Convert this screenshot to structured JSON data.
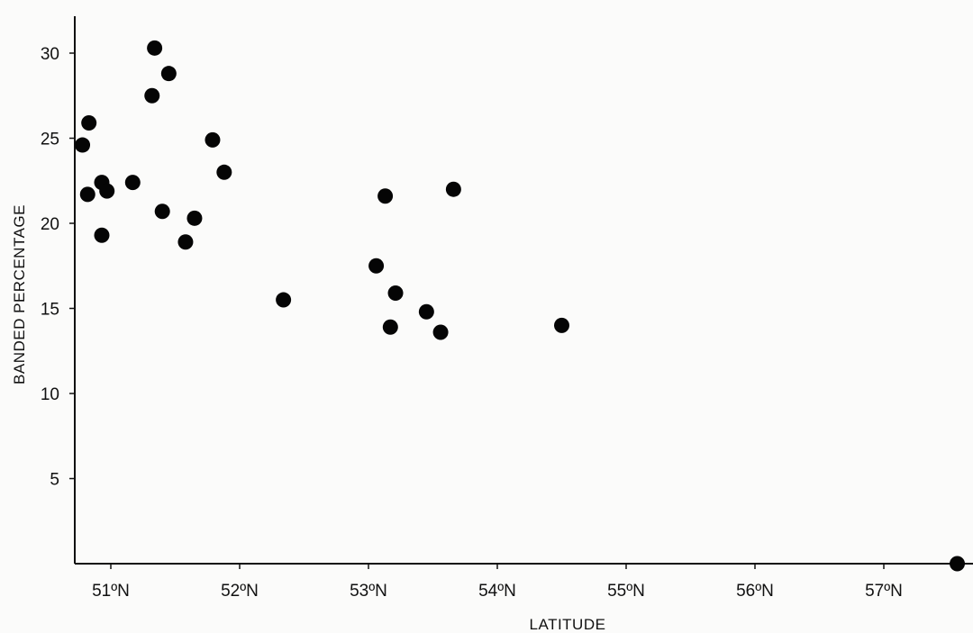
{
  "chart_data": {
    "type": "scatter",
    "title": "",
    "xlabel": "LATITUDE",
    "ylabel": "BANDED PERCENTAGE",
    "xlim": [
      50.7,
      57.7
    ],
    "ylim": [
      0,
      32
    ],
    "x_ticks": [
      {
        "value": 51,
        "label": "51ºN"
      },
      {
        "value": 52,
        "label": "52ºN"
      },
      {
        "value": 53,
        "label": "53ºN"
      },
      {
        "value": 54,
        "label": "54ºN"
      },
      {
        "value": 55,
        "label": "55ºN"
      },
      {
        "value": 56,
        "label": "56ºN"
      },
      {
        "value": 57,
        "label": "57ºN"
      }
    ],
    "y_ticks": [
      {
        "value": 5,
        "label": "5"
      },
      {
        "value": 10,
        "label": "10"
      },
      {
        "value": 15,
        "label": "15"
      },
      {
        "value": 20,
        "label": "20"
      },
      {
        "value": 25,
        "label": "25"
      },
      {
        "value": 30,
        "label": "30"
      }
    ],
    "grid": false,
    "points": [
      {
        "x": 50.78,
        "y": 24.6
      },
      {
        "x": 50.83,
        "y": 25.9
      },
      {
        "x": 50.82,
        "y": 21.7
      },
      {
        "x": 50.93,
        "y": 22.4
      },
      {
        "x": 50.97,
        "y": 21.9
      },
      {
        "x": 50.93,
        "y": 19.3
      },
      {
        "x": 51.17,
        "y": 22.4
      },
      {
        "x": 51.34,
        "y": 30.3
      },
      {
        "x": 51.45,
        "y": 28.8
      },
      {
        "x": 51.32,
        "y": 27.5
      },
      {
        "x": 51.4,
        "y": 20.7
      },
      {
        "x": 51.65,
        "y": 20.3
      },
      {
        "x": 51.58,
        "y": 18.9
      },
      {
        "x": 51.79,
        "y": 24.9
      },
      {
        "x": 51.88,
        "y": 23.0
      },
      {
        "x": 52.34,
        "y": 15.5
      },
      {
        "x": 53.13,
        "y": 21.6
      },
      {
        "x": 53.66,
        "y": 22.0
      },
      {
        "x": 53.06,
        "y": 17.5
      },
      {
        "x": 53.21,
        "y": 15.9
      },
      {
        "x": 53.45,
        "y": 14.8
      },
      {
        "x": 53.17,
        "y": 13.9
      },
      {
        "x": 53.56,
        "y": 13.6
      },
      {
        "x": 54.5,
        "y": 14.0
      },
      {
        "x": 57.57,
        "y": 0.0
      }
    ]
  }
}
